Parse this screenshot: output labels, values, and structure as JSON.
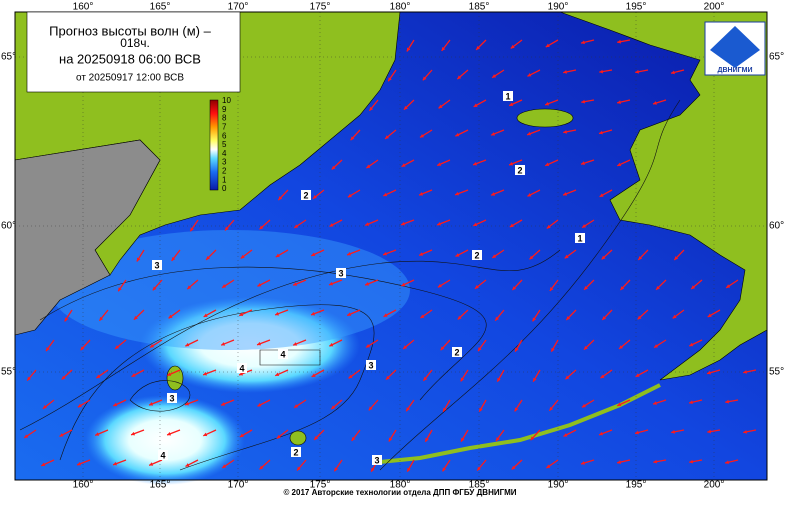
{
  "header": {
    "title": "Прогноз высоты волн (м) –",
    "lead": "018ч.",
    "valid": "на 20250918 06:00 ВСВ",
    "issued": "от 20250917 12:00 ВСВ"
  },
  "scale": {
    "labels": [
      10,
      9,
      8,
      7,
      6,
      5,
      4,
      3,
      2,
      1,
      0
    ]
  },
  "axes": {
    "lon_top": [
      "160°",
      "165°",
      "170°",
      "175°",
      "180°",
      "185°",
      "190°",
      "195°",
      "200°"
    ],
    "lon_bottom": [
      "160°",
      "165°",
      "170°",
      "175°",
      "180°",
      "185°",
      "190°",
      "195°",
      "200°"
    ],
    "lat_left": [
      "65°",
      "60°",
      "55°"
    ],
    "lat_right": [
      "65°",
      "60°",
      "55°"
    ]
  },
  "contours": {
    "labels": [
      1,
      1,
      2,
      2,
      2,
      2,
      3,
      3,
      3,
      3,
      4,
      4,
      4,
      2,
      3
    ]
  },
  "logo": {
    "text": "ДВНИГМИ"
  },
  "footer": {
    "text": "© 2017 Авторские технологии отдела ДПП ФГБУ ДВНИГМИ"
  }
}
